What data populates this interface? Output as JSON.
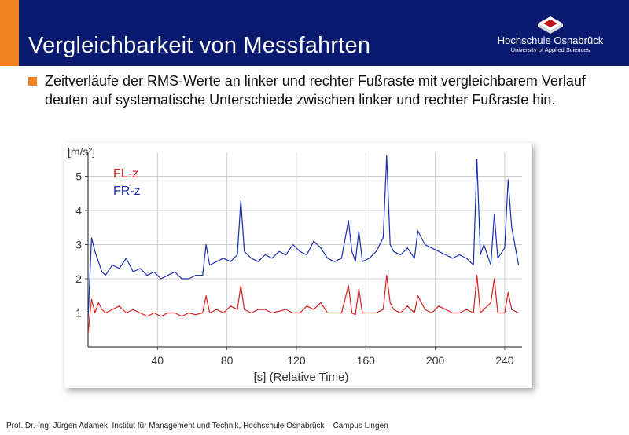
{
  "header": {
    "title": "Vergleichbarkeit von Messfahrten",
    "logo_name": "Hochschule Osnabrück",
    "logo_sub": "University of Applied Sciences"
  },
  "body": {
    "bullet_text": "Zeitverläufe der RMS-Werte an linker und rechter Fußraste mit vergleichbarem Verlauf deuten auf systematische Unterschiede zwischen linker und rechter Fußraste hin."
  },
  "footer": {
    "text": "Prof. Dr.-Ing. Jürgen Adamek,  Institut für Management und Technik, Hochschule Osnabrück – Campus Lingen"
  },
  "colors": {
    "header_bg": "#0a1a6e",
    "accent": "#f0831f",
    "series_fl": "#d42020",
    "series_fr": "#1a2fb0"
  },
  "chart_data": {
    "type": "line",
    "ylabel": "[m/s²]",
    "xlabel": "[s] (Relative Time)",
    "xlim": [
      0,
      250
    ],
    "ylim": [
      0,
      5.7
    ],
    "x_ticks": [
      40,
      80,
      120,
      160,
      200,
      240
    ],
    "y_ticks": [
      1,
      2,
      3,
      4,
      5
    ],
    "grid": true,
    "legend_placement": "top-left",
    "series": [
      {
        "name": "FL-z",
        "color": "#d42020",
        "x": [
          0,
          2,
          4,
          6,
          8,
          10,
          14,
          18,
          22,
          26,
          30,
          34,
          38,
          42,
          46,
          50,
          54,
          58,
          62,
          66,
          68,
          70,
          74,
          78,
          82,
          86,
          88,
          90,
          94,
          98,
          102,
          106,
          110,
          114,
          118,
          122,
          126,
          130,
          134,
          138,
          142,
          146,
          150,
          152,
          154,
          156,
          158,
          162,
          166,
          170,
          172,
          174,
          176,
          180,
          184,
          188,
          190,
          194,
          198,
          202,
          206,
          210,
          214,
          218,
          222,
          224,
          226,
          228,
          232,
          234,
          236,
          240,
          242,
          244,
          248
        ],
        "values": [
          0.4,
          1.4,
          1.0,
          1.3,
          1.1,
          1.0,
          1.1,
          1.2,
          1.0,
          1.1,
          1.0,
          0.9,
          1.0,
          0.9,
          1.0,
          1.0,
          0.9,
          1.0,
          0.95,
          1.0,
          1.5,
          1.0,
          1.1,
          1.0,
          1.2,
          1.1,
          1.8,
          1.1,
          1.0,
          1.1,
          1.1,
          1.0,
          1.05,
          1.1,
          1.0,
          1.0,
          1.2,
          1.1,
          1.3,
          1.0,
          1.0,
          1.0,
          1.8,
          1.0,
          0.95,
          1.7,
          1.0,
          1.0,
          1.0,
          1.1,
          2.1,
          1.3,
          1.1,
          1.0,
          1.2,
          1.0,
          1.5,
          1.1,
          1.0,
          1.2,
          1.1,
          1.0,
          1.0,
          1.1,
          1.0,
          2.1,
          1.0,
          1.1,
          1.3,
          2.0,
          1.0,
          1.0,
          1.6,
          1.1,
          1.0
        ]
      },
      {
        "name": "FR-z",
        "color": "#1a2fb0",
        "x": [
          0,
          2,
          4,
          6,
          8,
          10,
          14,
          18,
          22,
          26,
          30,
          34,
          38,
          42,
          46,
          50,
          54,
          58,
          62,
          66,
          68,
          70,
          74,
          78,
          82,
          86,
          88,
          90,
          94,
          98,
          102,
          106,
          110,
          114,
          118,
          122,
          126,
          130,
          134,
          138,
          142,
          146,
          150,
          152,
          154,
          156,
          158,
          162,
          166,
          170,
          172,
          174,
          176,
          180,
          184,
          188,
          190,
          194,
          198,
          202,
          206,
          210,
          214,
          218,
          222,
          224,
          226,
          228,
          232,
          234,
          236,
          240,
          242,
          244,
          248
        ],
        "values": [
          0.8,
          3.2,
          2.8,
          2.5,
          2.2,
          2.1,
          2.4,
          2.3,
          2.6,
          2.2,
          2.3,
          2.1,
          2.2,
          2.0,
          2.1,
          2.2,
          2.0,
          2.0,
          2.1,
          2.1,
          3.0,
          2.4,
          2.5,
          2.6,
          2.5,
          2.7,
          4.3,
          2.8,
          2.6,
          2.5,
          2.7,
          2.6,
          2.8,
          2.7,
          3.0,
          2.8,
          2.7,
          3.1,
          2.9,
          2.6,
          2.5,
          2.6,
          3.7,
          2.8,
          2.5,
          3.4,
          2.5,
          2.6,
          2.8,
          3.2,
          5.6,
          3.0,
          2.8,
          2.7,
          2.9,
          2.6,
          3.4,
          3.0,
          2.9,
          2.8,
          2.7,
          2.6,
          2.7,
          2.6,
          2.4,
          5.5,
          2.7,
          3.0,
          2.4,
          3.9,
          2.6,
          2.9,
          4.9,
          3.5,
          2.4
        ]
      }
    ]
  }
}
